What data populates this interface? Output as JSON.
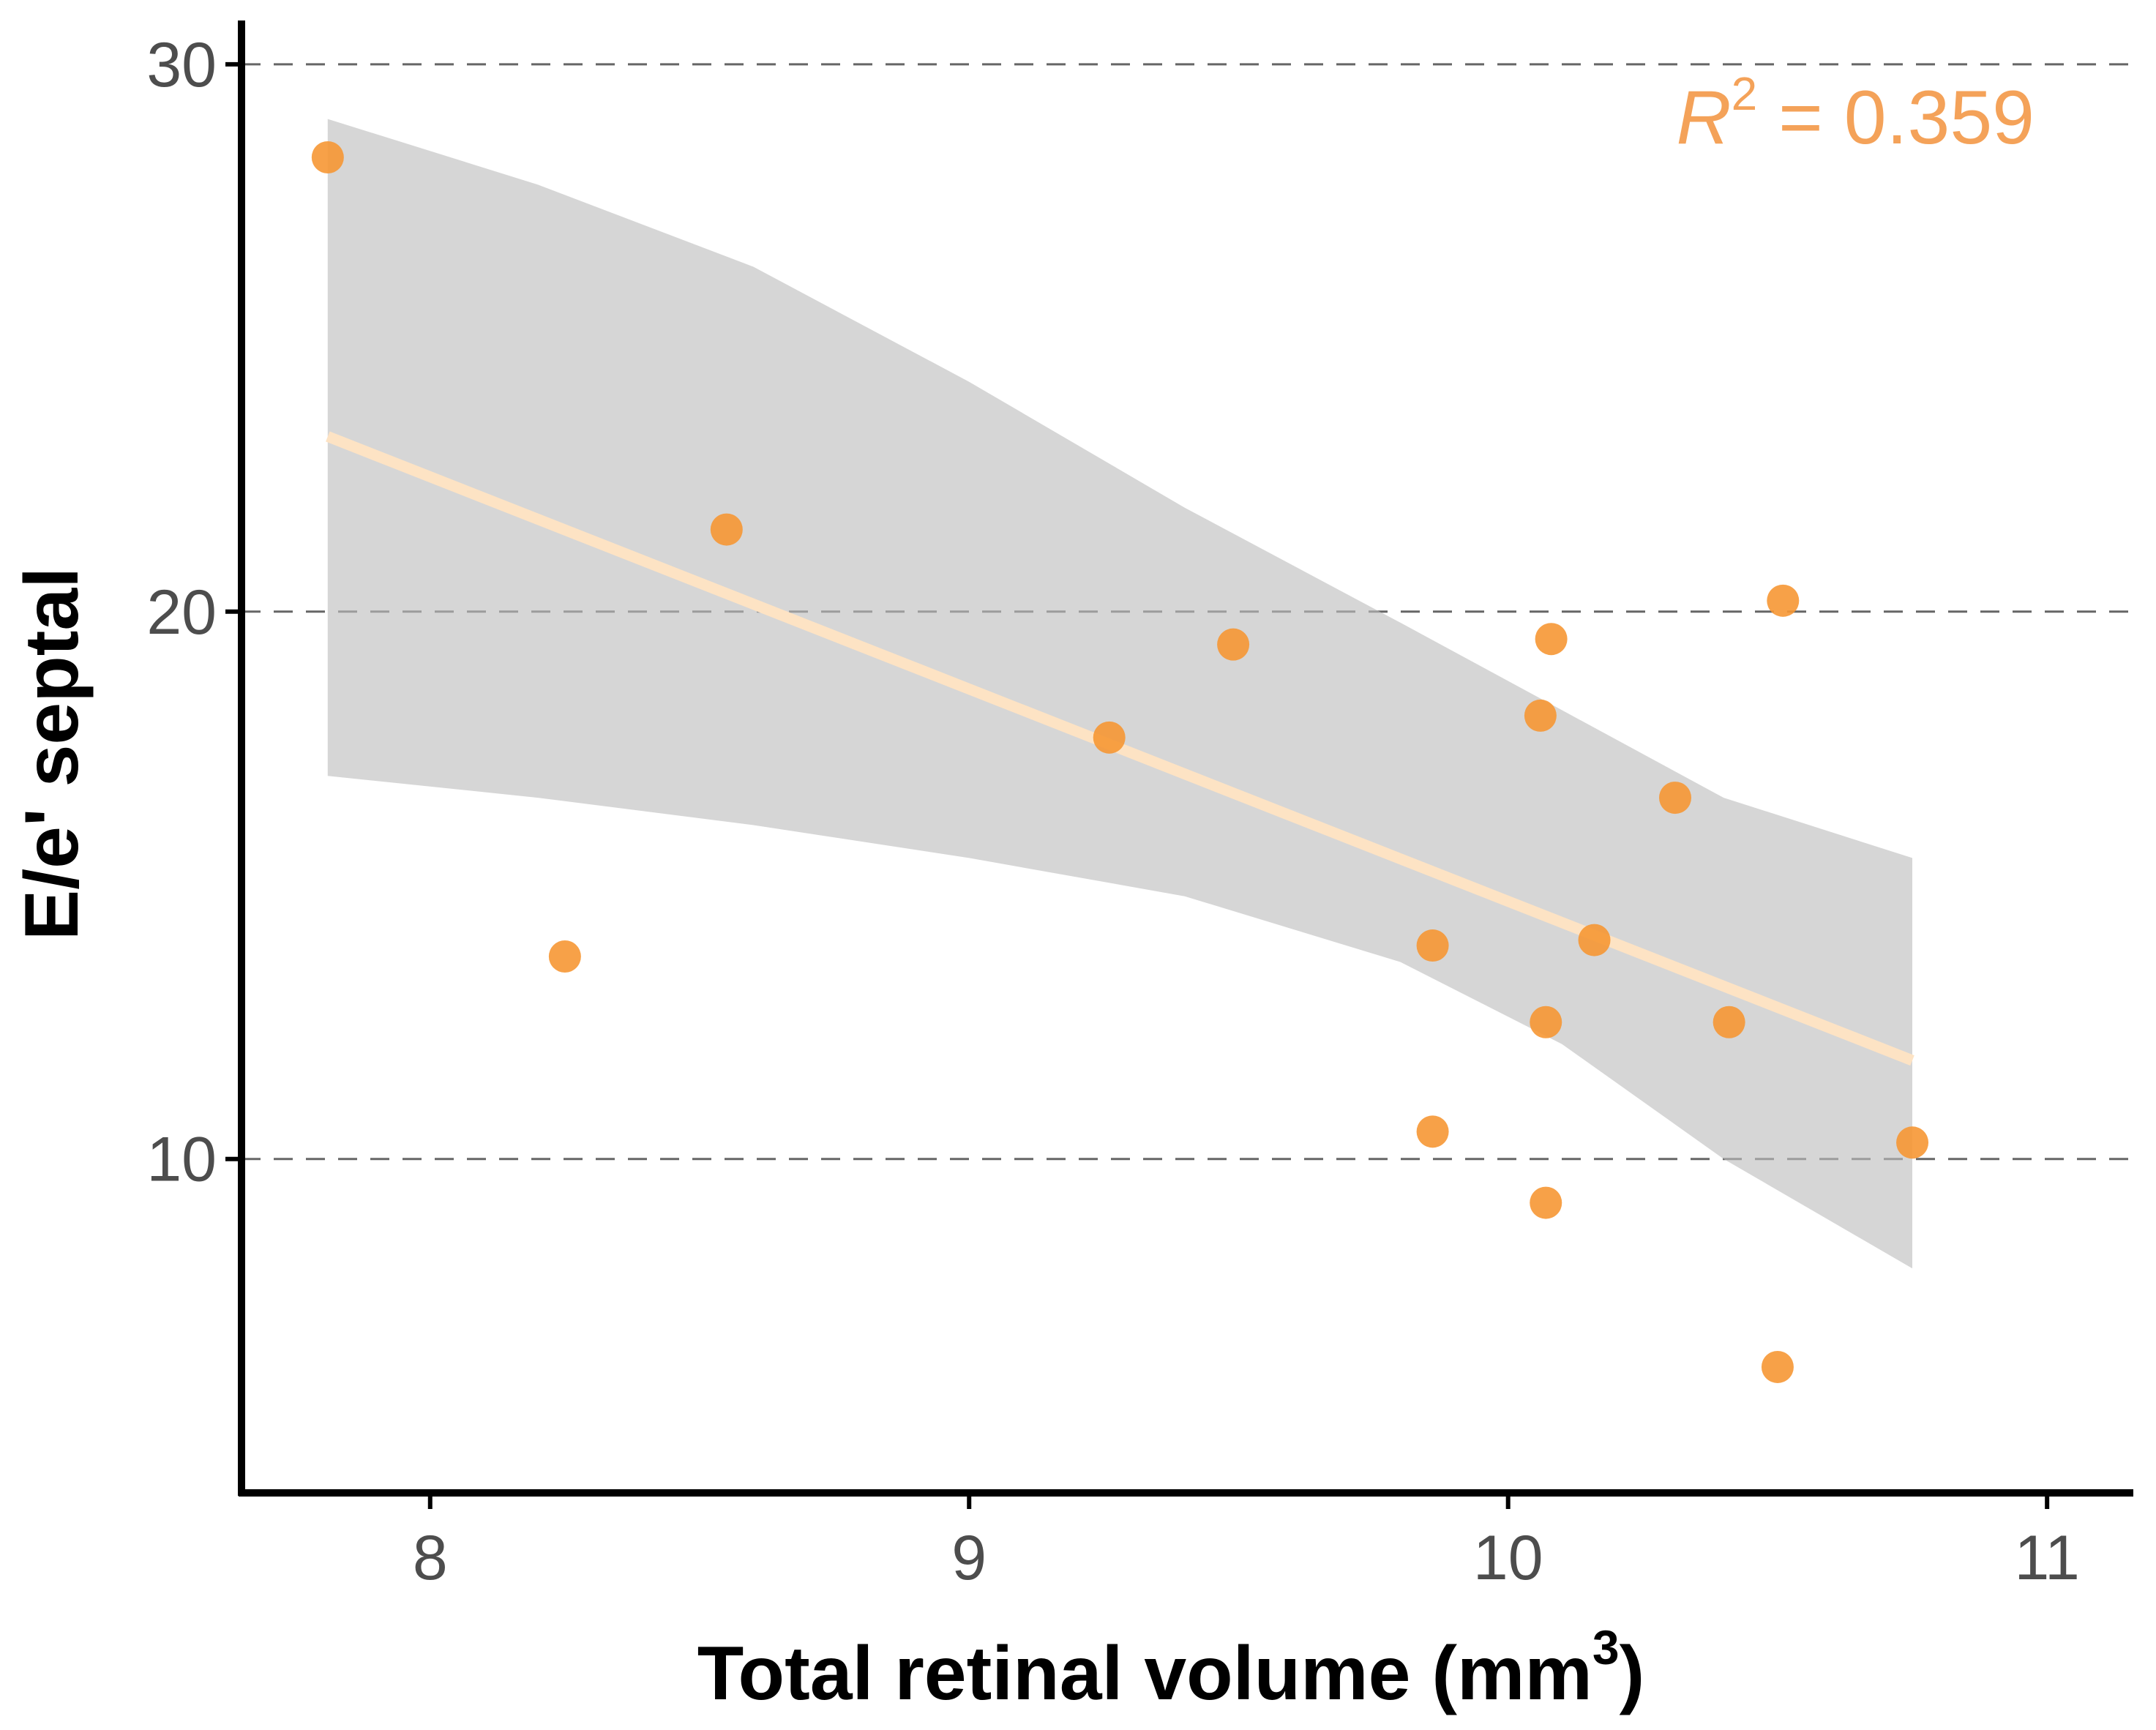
{
  "chart_data": {
    "type": "scatter",
    "title": "",
    "xlabel": "Total retinal volume (mm",
    "xlabel_sup": "3",
    "xlabel_close": ")",
    "ylabel": "E/e' septal",
    "xlim": [
      7.65,
      11.16
    ],
    "ylim": [
      3.9,
      30.8
    ],
    "x_ticks": [
      8,
      9,
      10,
      11
    ],
    "y_ticks": [
      10,
      20,
      30
    ],
    "x_tick_labels": [
      "8",
      "9",
      "10",
      "11"
    ],
    "y_tick_labels": [
      "10",
      "20",
      "30"
    ],
    "grid": "horizontal dashed at y ticks",
    "series": [
      {
        "name": "observations",
        "x": [
          7.81,
          8.25,
          8.55,
          9.26,
          9.49,
          9.86,
          9.86,
          10.06,
          10.07,
          10.07,
          10.08,
          10.16,
          10.31,
          10.41,
          10.5,
          10.51,
          10.75
        ],
        "y": [
          28.3,
          13.7,
          21.5,
          17.7,
          19.4,
          13.9,
          10.5,
          18.1,
          12.5,
          9.2,
          19.5,
          14.0,
          16.6,
          12.5,
          6.2,
          20.2,
          10.3
        ]
      }
    ],
    "fit_line": {
      "x": [
        7.81,
        10.75
      ],
      "y": [
        23.2,
        11.8
      ]
    },
    "confidence_band": {
      "x": [
        7.81,
        8.2,
        8.6,
        9.0,
        9.4,
        9.8,
        10.1,
        10.4,
        10.75
      ],
      "upper": [
        29.0,
        27.8,
        26.3,
        24.2,
        21.9,
        19.8,
        18.2,
        16.6,
        15.5
      ],
      "lower": [
        17.0,
        16.6,
        16.1,
        15.5,
        14.8,
        13.6,
        12.1,
        10.0,
        8.0
      ]
    },
    "annotation": {
      "italic_part": "R",
      "sup": "2",
      "text": " = 0.359",
      "position": "top-right"
    },
    "colors": {
      "points": "#f69734",
      "fit_line": "#fde3c4",
      "band": "#bdbdbd",
      "annotation": "#f4a259",
      "axis": "#000000",
      "grid": "#666666"
    }
  }
}
